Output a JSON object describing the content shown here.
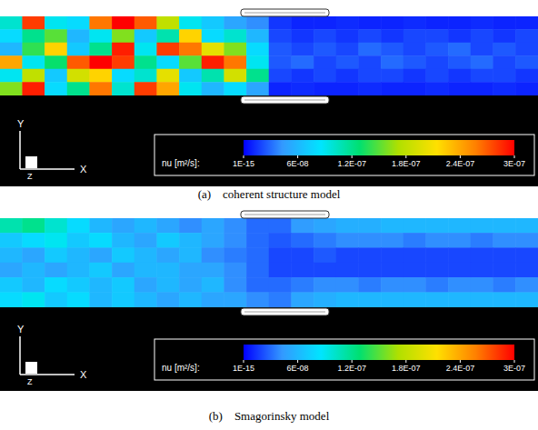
{
  "chart_data": [
    {
      "type": "heatmap",
      "title": "(a)    coherent structure model",
      "xlabel": "X",
      "ylabel": "Y",
      "zlabel": "Z",
      "tick_labels": false,
      "cells": [
        [
          1e-07,
          2.8e-07,
          9e-08,
          8e-08,
          2.6e-07,
          3e-07,
          2.7e-07,
          1.8e-07,
          9e-08,
          7e-08,
          5e-08,
          4e-08,
          1.5e-08,
          1e-08,
          1e-08,
          1.2e-08,
          1e-08,
          1e-08,
          1.2e-08,
          1e-08,
          1e-08,
          1.2e-08,
          1e-08,
          1e-08
        ],
        [
          8e-08,
          1.2e-07,
          1.5e-07,
          6e-08,
          9e-08,
          1.6e-07,
          7e-08,
          1.1e-07,
          2.2e-07,
          8e-08,
          1e-07,
          6e-08,
          2e-08,
          1.5e-08,
          2e-08,
          1.5e-08,
          2e-08,
          1.5e-08,
          2e-08,
          2e-08,
          1.5e-08,
          2e-08,
          1.5e-08,
          2e-08
        ],
        [
          6e-08,
          1.4e-07,
          2.2e-07,
          7e-08,
          1.2e-07,
          2.9e-07,
          9e-08,
          2.8e-07,
          2.6e-07,
          2e-07,
          1.6e-07,
          8e-08,
          2.5e-08,
          2e-08,
          2.5e-08,
          2e-08,
          3e-08,
          2.5e-08,
          2e-08,
          2.5e-08,
          3e-08,
          2e-08,
          2.5e-08,
          2e-08
        ],
        [
          2.4e-07,
          9e-08,
          1.3e-07,
          2.7e-07,
          3e-07,
          2.8e-07,
          1.2e-07,
          8e-08,
          1.5e-07,
          2.9e-07,
          2.6e-07,
          9e-08,
          2.5e-08,
          3e-08,
          2e-08,
          2.5e-08,
          2e-08,
          3e-08,
          2.5e-08,
          2e-08,
          2.5e-08,
          3e-08,
          2e-08,
          2.5e-08
        ],
        [
          9e-08,
          1.8e-07,
          7e-08,
          1.9e-07,
          2.2e-07,
          8e-08,
          1e-07,
          2e-07,
          7e-08,
          1.1e-07,
          1.9e-07,
          1.2e-07,
          2e-08,
          1.5e-08,
          2e-08,
          1.5e-08,
          2e-08,
          2e-08,
          1.5e-08,
          2e-08,
          1.5e-08,
          2e-08,
          2e-08,
          1.5e-08
        ],
        [
          1.6e-07,
          2.9e-07,
          8e-08,
          1.2e-07,
          2.6e-07,
          1e-07,
          2.8e-07,
          2.4e-07,
          9e-08,
          6e-08,
          8e-08,
          5e-08,
          1e-08,
          1.2e-08,
          1e-08,
          1e-08,
          1.2e-08,
          1e-08,
          1e-08,
          1.2e-08,
          1e-08,
          1e-08,
          1.2e-08,
          1e-08
        ]
      ],
      "colorbar": {
        "label": "nu [m²/s]:",
        "range": [
          1e-15,
          3e-07
        ],
        "ticks": [
          {
            "value": 1e-15,
            "label": "1E-15"
          },
          {
            "value": 6e-08,
            "label": "6E-08"
          },
          {
            "value": 1.2e-07,
            "label": "1.2E-07"
          },
          {
            "value": 1.8e-07,
            "label": "1.8E-07"
          },
          {
            "value": 2.4e-07,
            "label": "2.4E-07"
          },
          {
            "value": 3e-07,
            "label": "3E-07"
          }
        ]
      }
    },
    {
      "type": "heatmap",
      "title": "(b)    Smagorinsky model",
      "xlabel": "X",
      "ylabel": "Y",
      "zlabel": "Z",
      "tick_labels": false,
      "cells": [
        [
          1.1e-07,
          1.2e-07,
          1e-07,
          8e-08,
          6e-08,
          5e-08,
          6e-08,
          5e-08,
          4e-08,
          5e-08,
          4e-08,
          3e-08,
          3e-08,
          4.5e-08,
          5e-08,
          5.5e-08,
          5.5e-08,
          6e-08,
          6e-08,
          6e-08,
          6e-08,
          6e-08,
          6e-08,
          6e-08
        ],
        [
          7e-08,
          8e-08,
          9e-08,
          7e-08,
          8e-08,
          6e-08,
          5e-08,
          7e-08,
          6e-08,
          5e-08,
          4e-08,
          3e-08,
          2.5e-08,
          3e-08,
          3.5e-08,
          4e-08,
          4e-08,
          4e-08,
          3.5e-08,
          4e-08,
          4e-08,
          3.5e-08,
          4e-08,
          4e-08
        ],
        [
          6e-08,
          5e-08,
          7e-08,
          6e-08,
          5e-08,
          7e-08,
          6e-08,
          5e-08,
          6e-08,
          4e-08,
          3.5e-08,
          3e-08,
          2e-08,
          2e-08,
          2.5e-08,
          2e-08,
          2e-08,
          2e-08,
          2e-08,
          2e-08,
          2e-08,
          2e-08,
          2e-08,
          2e-08
        ],
        [
          5e-08,
          6e-08,
          5e-08,
          6e-08,
          7e-08,
          5e-08,
          6e-08,
          6e-08,
          5e-08,
          5e-08,
          4e-08,
          3e-08,
          2e-08,
          2e-08,
          2e-08,
          2e-08,
          2e-08,
          2e-08,
          2e-08,
          2e-08,
          2e-08,
          2e-08,
          2e-08,
          2e-08
        ],
        [
          7e-08,
          6e-08,
          8e-08,
          7e-08,
          6e-08,
          7e-08,
          5e-08,
          6e-08,
          5e-08,
          6e-08,
          4e-08,
          3e-08,
          3e-08,
          3.5e-08,
          4e-08,
          4e-08,
          3.5e-08,
          4e-08,
          4e-08,
          3.5e-08,
          4e-08,
          4e-08,
          3.5e-08,
          4e-08
        ],
        [
          8e-08,
          9e-08,
          7e-08,
          8e-08,
          6e-08,
          7e-08,
          6e-08,
          5e-08,
          6e-08,
          5e-08,
          5e-08,
          4e-08,
          3.5e-08,
          5e-08,
          5.5e-08,
          6e-08,
          6e-08,
          6e-08,
          6e-08,
          6e-08,
          6e-08,
          6e-08,
          6e-08,
          6e-08
        ]
      ],
      "colorbar": {
        "label": "nu [m²/s]:",
        "range": [
          1e-15,
          3e-07
        ],
        "ticks": [
          {
            "value": 1e-15,
            "label": "1E-15"
          },
          {
            "value": 6e-08,
            "label": "6E-08"
          },
          {
            "value": 1.2e-07,
            "label": "1.2E-07"
          },
          {
            "value": 1.8e-07,
            "label": "1.8E-07"
          },
          {
            "value": 2.4e-07,
            "label": "2.4E-07"
          },
          {
            "value": 3e-07,
            "label": "3E-07"
          }
        ]
      }
    }
  ]
}
